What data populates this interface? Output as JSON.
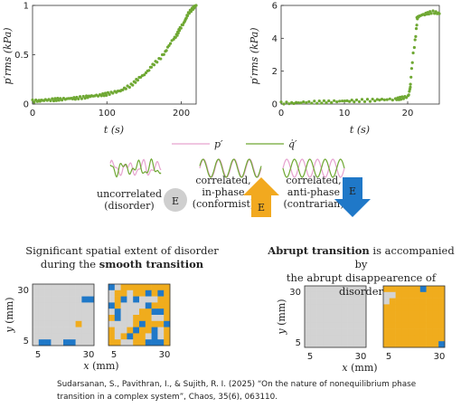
{
  "figure": {
    "headings": {
      "left_line1": "Significant spatial extent of disorder",
      "left_line2_prefix": "during the ",
      "left_line2_bold": "smooth transition",
      "right_line1_bold": "Abrupt transition",
      "right_line1_rest": " is accompanied by",
      "right_line2": "the abrupt disappearence of disorder"
    },
    "legend": {
      "p": "p′",
      "q": "q̇′"
    },
    "states": [
      {
        "label_lines": [
          "uncorrelated",
          "(disorder)"
        ],
        "symbol": "E",
        "color": "#cfcfcf"
      },
      {
        "label_lines": [
          "correlated,",
          "in-phase",
          "(conformist)"
        ],
        "symbol": "E",
        "color": "#f2a91f"
      },
      {
        "label_lines": [
          "correlated,",
          "anti-phase",
          "(contrarian)"
        ],
        "symbol": "E",
        "color": "#1f78c8"
      }
    ],
    "colors": {
      "green": "#6fa833",
      "pink": "#e6a3cf",
      "gray": "#d3d3d3",
      "orange": "#f0ac1d",
      "blue": "#1f78c8"
    },
    "citation_line1": "Sudarsanan, S., Pavithran, I., & Sujith, R. I. (2025) “On the nature of nonequilibrium phase",
    "citation_line2": "transition in a complex system”, Chaos, 35(6), 063110.",
    "maps": {
      "xlabel": "x (mm)",
      "ylabel": "y (mm)",
      "ticks": [
        "5",
        "30"
      ]
    }
  },
  "chart_data": [
    {
      "type": "scatter",
      "xlabel": "t (s)",
      "ylabel": "p′rms (kPa)",
      "xlim": [
        0,
        220
      ],
      "ylim": [
        0,
        1
      ],
      "xticks": [
        0,
        100,
        200
      ],
      "yticks": [
        0,
        0.5,
        1
      ],
      "series": [
        {
          "color": "#6fa833",
          "x": [
            0,
            10,
            20,
            30,
            40,
            50,
            60,
            70,
            80,
            90,
            100,
            110,
            120,
            130,
            140,
            150,
            160,
            170,
            180,
            190,
            195,
            200,
            205,
            210,
            215,
            220
          ],
          "y": [
            0.03,
            0.035,
            0.04,
            0.045,
            0.05,
            0.055,
            0.06,
            0.07,
            0.08,
            0.09,
            0.1,
            0.12,
            0.14,
            0.18,
            0.24,
            0.3,
            0.38,
            0.45,
            0.55,
            0.66,
            0.72,
            0.78,
            0.85,
            0.92,
            0.97,
            1.0
          ]
        }
      ]
    },
    {
      "type": "scatter",
      "xlabel": "t (s)",
      "ylabel": "p′rms (kPa)",
      "xlim": [
        0,
        25
      ],
      "ylim": [
        0,
        6
      ],
      "xticks": [
        0,
        10,
        20
      ],
      "yticks": [
        0,
        2,
        4,
        6
      ],
      "series": [
        {
          "color": "#6fa833",
          "x": [
            0,
            2,
            4,
            6,
            8,
            10,
            12,
            14,
            16,
            18,
            19,
            20,
            20.5,
            21,
            21.5,
            22,
            23,
            24,
            25
          ],
          "y": [
            0.05,
            0.07,
            0.1,
            0.12,
            0.15,
            0.18,
            0.2,
            0.23,
            0.26,
            0.3,
            0.35,
            0.45,
            1.2,
            3.5,
            5.2,
            5.4,
            5.5,
            5.6,
            5.5
          ]
        }
      ]
    }
  ]
}
